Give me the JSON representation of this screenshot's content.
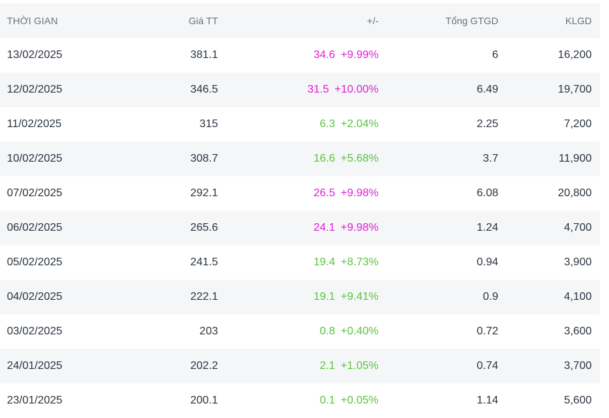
{
  "colors": {
    "ceiling": "#e11fd4",
    "up": "#5cc43c",
    "header_bg": "#f4f6f8",
    "alt_row_bg": "#f4f6f8"
  },
  "table": {
    "headers": {
      "date": "THỜI GIAN",
      "price": "Giá TT",
      "change": "+/-",
      "total_value": "Tổng GTGD",
      "volume": "KLGD"
    },
    "rows": [
      {
        "date": "13/02/2025",
        "price": "381.1",
        "change_abs": "34.6",
        "change_pct": "+9.99%",
        "trend": "ceiling",
        "total_value": "6",
        "volume": "16,200"
      },
      {
        "date": "12/02/2025",
        "price": "346.5",
        "change_abs": "31.5",
        "change_pct": "+10.00%",
        "trend": "ceiling",
        "total_value": "6.49",
        "volume": "19,700"
      },
      {
        "date": "11/02/2025",
        "price": "315",
        "change_abs": "6.3",
        "change_pct": "+2.04%",
        "trend": "up",
        "total_value": "2.25",
        "volume": "7,200"
      },
      {
        "date": "10/02/2025",
        "price": "308.7",
        "change_abs": "16.6",
        "change_pct": "+5.68%",
        "trend": "up",
        "total_value": "3.7",
        "volume": "11,900"
      },
      {
        "date": "07/02/2025",
        "price": "292.1",
        "change_abs": "26.5",
        "change_pct": "+9.98%",
        "trend": "ceiling",
        "total_value": "6.08",
        "volume": "20,800"
      },
      {
        "date": "06/02/2025",
        "price": "265.6",
        "change_abs": "24.1",
        "change_pct": "+9.98%",
        "trend": "ceiling",
        "total_value": "1.24",
        "volume": "4,700"
      },
      {
        "date": "05/02/2025",
        "price": "241.5",
        "change_abs": "19.4",
        "change_pct": "+8.73%",
        "trend": "up",
        "total_value": "0.94",
        "volume": "3,900"
      },
      {
        "date": "04/02/2025",
        "price": "222.1",
        "change_abs": "19.1",
        "change_pct": "+9.41%",
        "trend": "up",
        "total_value": "0.9",
        "volume": "4,100"
      },
      {
        "date": "03/02/2025",
        "price": "203",
        "change_abs": "0.8",
        "change_pct": "+0.40%",
        "trend": "up",
        "total_value": "0.72",
        "volume": "3,600"
      },
      {
        "date": "24/01/2025",
        "price": "202.2",
        "change_abs": "2.1",
        "change_pct": "+1.05%",
        "trend": "up",
        "total_value": "0.74",
        "volume": "3,700"
      },
      {
        "date": "23/01/2025",
        "price": "200.1",
        "change_abs": "0.1",
        "change_pct": "+0.05%",
        "trend": "up",
        "total_value": "1.14",
        "volume": "5,600"
      }
    ]
  }
}
